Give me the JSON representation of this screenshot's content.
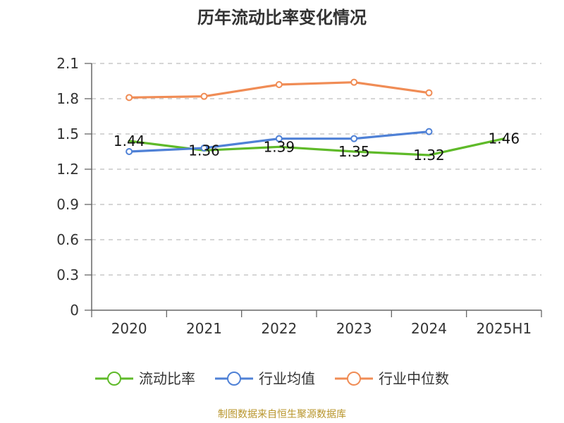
{
  "chart_data": {
    "type": "line",
    "title": "历年流动比率变化情况",
    "categories": [
      "2020",
      "2021",
      "2022",
      "2023",
      "2024",
      "2025H1"
    ],
    "ylim": [
      0,
      2.1
    ],
    "yticks": [
      "0",
      "0.3",
      "0.6",
      "0.9",
      "1.2",
      "1.5",
      "1.8",
      "2.1"
    ],
    "grid": "horizontal dashed",
    "legend_position": "bottom",
    "series": [
      {
        "name": "流动比率",
        "color": "#5fba29",
        "values": [
          1.44,
          1.36,
          1.39,
          1.35,
          1.32,
          1.46
        ],
        "labels": [
          "1.44",
          "1.36",
          "1.39",
          "1.35",
          "1.32",
          "1.46"
        ],
        "show_markers": false,
        "show_labels": true
      },
      {
        "name": "行业均值",
        "color": "#4f81d6",
        "values": [
          1.35,
          1.38,
          1.46,
          1.46,
          1.52,
          null
        ],
        "show_markers": true,
        "show_labels": false
      },
      {
        "name": "行业中位数",
        "color": "#f08c55",
        "values": [
          1.81,
          1.82,
          1.92,
          1.94,
          1.85,
          null
        ],
        "show_markers": true,
        "show_labels": false
      }
    ],
    "source": "制图数据来自恒生聚源数据库"
  }
}
